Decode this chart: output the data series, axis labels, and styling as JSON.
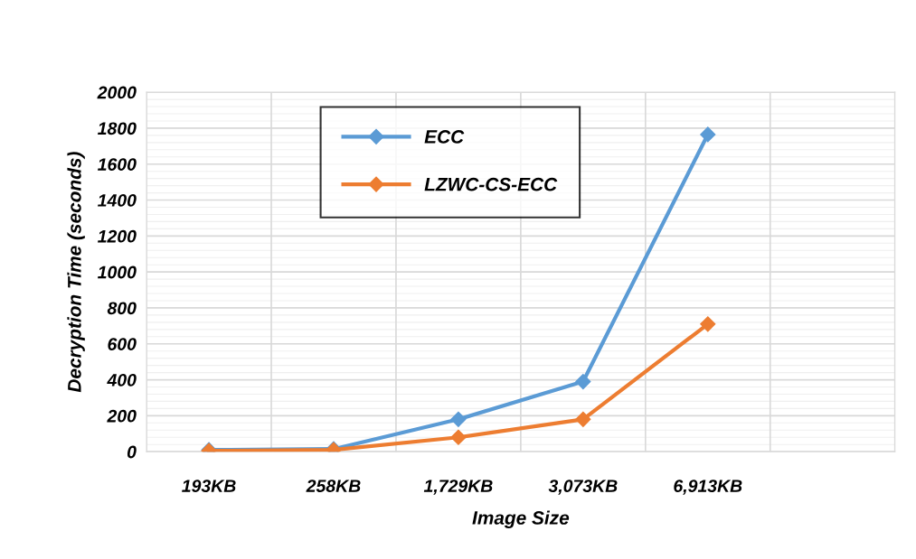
{
  "chart_data": {
    "type": "line",
    "xlabel": "Image Size",
    "ylabel": "Decryption Time (seconds)",
    "categories": [
      "193KB",
      "258KB",
      "1,729KB",
      "3,073KB",
      "6,913KB",
      null
    ],
    "series": [
      {
        "name": "ECC",
        "color": "#5b9bd5",
        "values": [
          10,
          15,
          180,
          390,
          1765,
          null
        ]
      },
      {
        "name": "LZWC-CS-ECC",
        "color": "#ed7d31",
        "values": [
          5,
          10,
          80,
          180,
          710,
          null
        ]
      }
    ],
    "ylim": [
      0,
      2000
    ],
    "yticks": [
      0,
      200,
      400,
      600,
      800,
      1000,
      1200,
      1400,
      1600,
      1800,
      2000
    ],
    "grid": true,
    "legend": "top left",
    "marker": "diamond",
    "line_style": "solid"
  }
}
